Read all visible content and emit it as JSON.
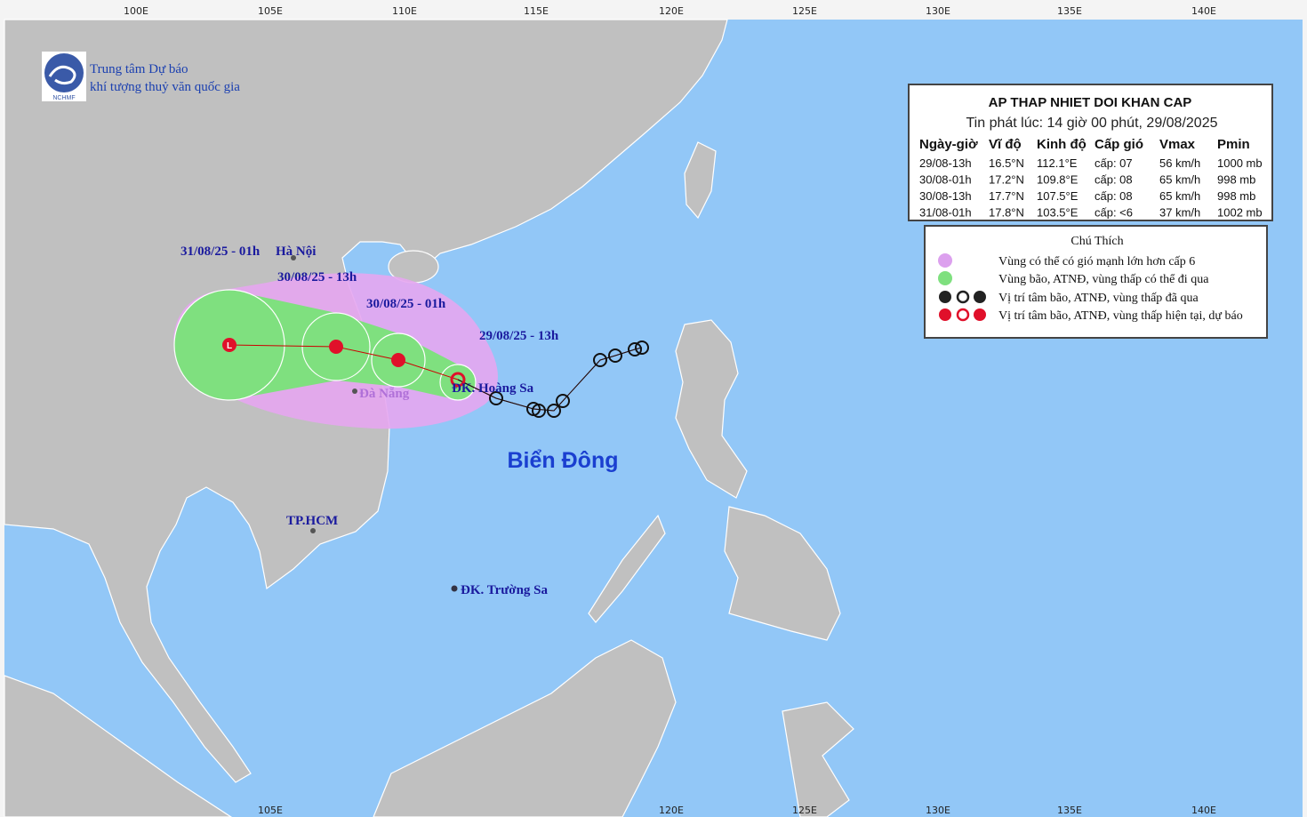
{
  "header": {
    "org_line1": "Trung tâm Dự báo",
    "org_line2": "khí tượng thuỷ văn quốc gia",
    "logo_text": "NCHMF"
  },
  "longitude_labels": {
    "top": [
      "100E",
      "105E",
      "110E",
      "115E",
      "120E",
      "125E",
      "130E",
      "135E",
      "140E"
    ],
    "bottom": [
      "105E",
      "120E",
      "125E",
      "130E",
      "135E",
      "140E"
    ]
  },
  "bulletin": {
    "title": "AP THAP NHIET DOI KHAN CAP",
    "issued": "Tin phát lúc: 14 giờ 00 phút, 29/08/2025",
    "columns": [
      "Ngày-giờ",
      "Vĩ độ",
      "Kinh độ",
      "Cấp gió",
      "Vmax",
      "Pmin"
    ],
    "rows": [
      [
        "29/08-13h",
        "16.5°N",
        "112.1°E",
        "cấp: 07",
        "56 km/h",
        "1000 mb"
      ],
      [
        "30/08-01h",
        "17.2°N",
        "109.8°E",
        "cấp: 08",
        "65 km/h",
        "998 mb"
      ],
      [
        "30/08-13h",
        "17.7°N",
        "107.5°E",
        "cấp: 08",
        "65 km/h",
        "998 mb"
      ],
      [
        "31/08-01h",
        "17.8°N",
        "103.5°E",
        "cấp: <6",
        "37 km/h",
        "1002 mb"
      ]
    ]
  },
  "legend": {
    "title": "Chú Thích",
    "items": [
      "Vùng có thể có gió mạnh lớn hơn cấp 6",
      "Vùng bão, ATNĐ, vùng thấp có thể đi qua",
      "Vị trí tâm bão, ATNĐ, vùng thấp đã qua",
      "Vị trí tâm bão, ATNĐ, vùng thấp hiện tại, dự báo"
    ]
  },
  "places": [
    "Hà Nội",
    "Đà Nẵng",
    "ĐK. Hoàng Sa",
    "TP.HCM",
    "ĐK. Trường Sa"
  ],
  "track_labels": [
    "31/08/25 - 01h",
    "30/08/25 - 13h",
    "30/08/25 - 01h",
    "29/08/25 - 13h"
  ],
  "sea_label": "Biển Đông"
}
